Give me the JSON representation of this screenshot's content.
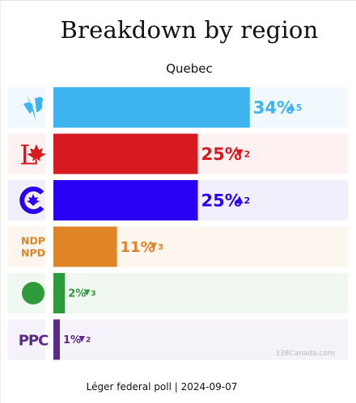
{
  "chart_data": {
    "type": "bar",
    "orientation": "horizontal",
    "title": "Breakdown by region",
    "subtitle": "Quebec",
    "footer": "Léger federal poll | 2024-09-07",
    "watermark": "338Canada.com",
    "xlim": [
      0,
      50
    ],
    "categories": [
      "BQ",
      "LPC",
      "CPC",
      "NDP",
      "GPC",
      "PPC"
    ],
    "values": [
      34,
      25,
      25,
      11,
      2,
      1
    ],
    "value_labels": [
      "34%",
      "25%",
      "25%",
      "11%",
      "2%",
      "1%"
    ],
    "change_directions": [
      "up",
      "down",
      "up",
      "down",
      "down",
      "down"
    ],
    "change_values": [
      "5",
      "2",
      "2",
      "3",
      "3",
      "2"
    ],
    "colors": [
      "#3db3f0",
      "#d71920",
      "#2a00f5",
      "#e08428",
      "#2e9b3a",
      "#5b2b8c"
    ],
    "row_backgrounds": [
      "#f2f9fe",
      "#fdf1f1",
      "#f2effd",
      "#fdf6ef",
      "#f0f8f1",
      "#f6f2fa"
    ],
    "logos": [
      "bq-fleur-icon",
      "lpc-maple-l-icon",
      "cpc-c-icon",
      "ndp-npd-text-icon",
      "gpc-green-circle-icon",
      "ppc-text-icon"
    ],
    "logo_texts": [
      "",
      "",
      "",
      "NDP NPD",
      "",
      "PPC"
    ]
  }
}
